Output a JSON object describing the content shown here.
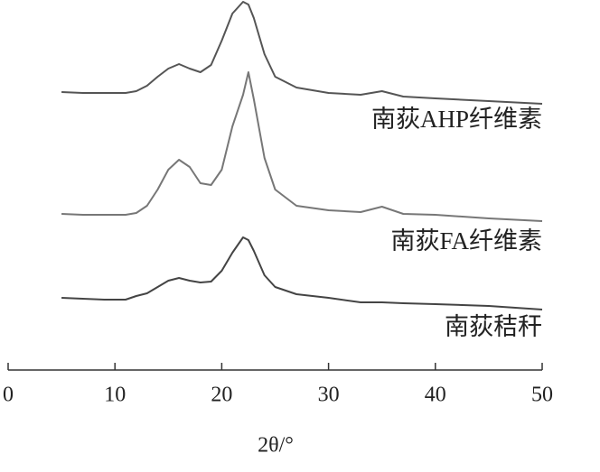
{
  "chart_data": {
    "type": "line",
    "x": [
      5,
      7,
      9,
      11,
      12,
      13,
      14,
      15,
      16,
      17,
      18,
      19,
      20,
      21,
      22,
      22.5,
      23,
      24,
      25,
      27,
      30,
      33,
      35,
      37,
      40,
      45,
      50
    ],
    "series": [
      {
        "name": "南荻AHP纤维素",
        "color": "#555555",
        "values": [
          308,
          307,
          307,
          307,
          309,
          315,
          325,
          334,
          339,
          334,
          330,
          338,
          365,
          395,
          408,
          405,
          390,
          350,
          325,
          313,
          307,
          305,
          309,
          303,
          301,
          298,
          295
        ]
      },
      {
        "name": "南荻FA纤维素",
        "color": "#777777",
        "values": [
          173,
          172,
          172,
          172,
          174,
          182,
          200,
          222,
          233,
          225,
          207,
          205,
          222,
          270,
          305,
          330,
          300,
          235,
          200,
          182,
          177,
          175,
          181,
          173,
          172,
          168,
          165
        ]
      },
      {
        "name": "南荻秸秆",
        "color": "#444444",
        "values": [
          80,
          79,
          78,
          78,
          82,
          85,
          92,
          99,
          102,
          99,
          97,
          98,
          110,
          130,
          147,
          144,
          132,
          105,
          92,
          84,
          80,
          75,
          75,
          74,
          73,
          71,
          67
        ]
      }
    ],
    "xlabel": "2θ/°",
    "xlim": [
      0,
      50
    ],
    "xticks": [
      0,
      10,
      20,
      30,
      40,
      50
    ],
    "ylim": [
      0,
      410
    ]
  }
}
